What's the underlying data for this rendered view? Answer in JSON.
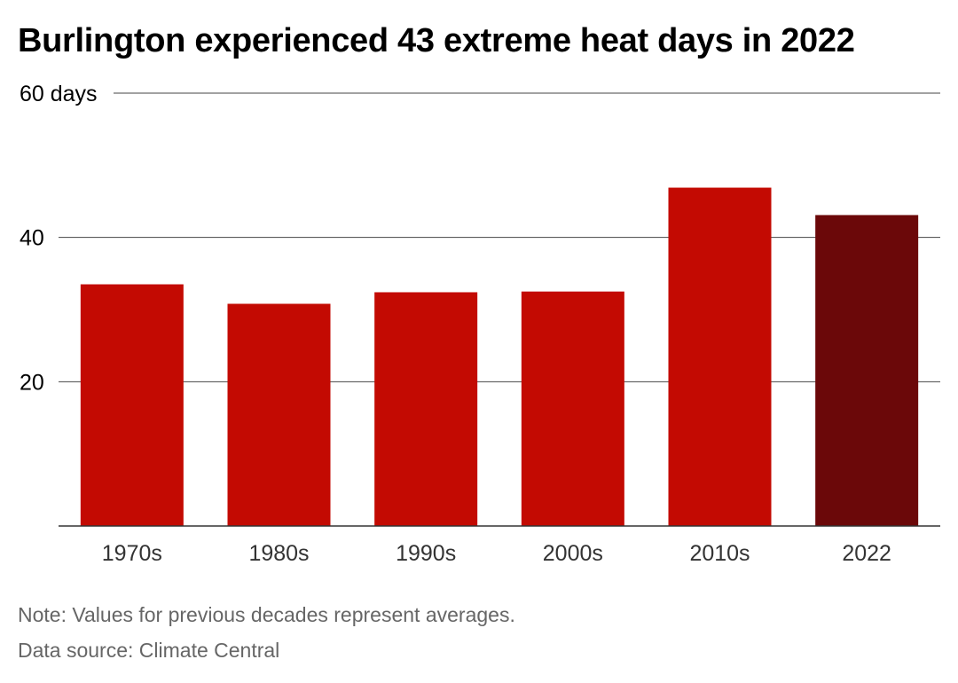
{
  "chart_data": {
    "type": "bar",
    "title": "Burlington experienced 43 extreme heat days in 2022",
    "categories": [
      "1970s",
      "1980s",
      "1990s",
      "2000s",
      "2010s",
      "2022"
    ],
    "values": [
      33.5,
      30.8,
      32.4,
      32.5,
      46.9,
      43.1
    ],
    "ylim": [
      0,
      60
    ],
    "yticks": [
      {
        "value": 60,
        "label": "60 days"
      },
      {
        "value": 40,
        "label": "40"
      },
      {
        "value": 20,
        "label": "20"
      }
    ],
    "grid": true,
    "colors": {
      "bar": "#c30a02",
      "highlight": "#6b0809",
      "grid": "#444444",
      "axis": "#333333"
    },
    "highlight_category": "2022"
  },
  "footer": {
    "note": "Note: Values for previous decades represent averages.",
    "source": "Data source: Climate Central"
  }
}
